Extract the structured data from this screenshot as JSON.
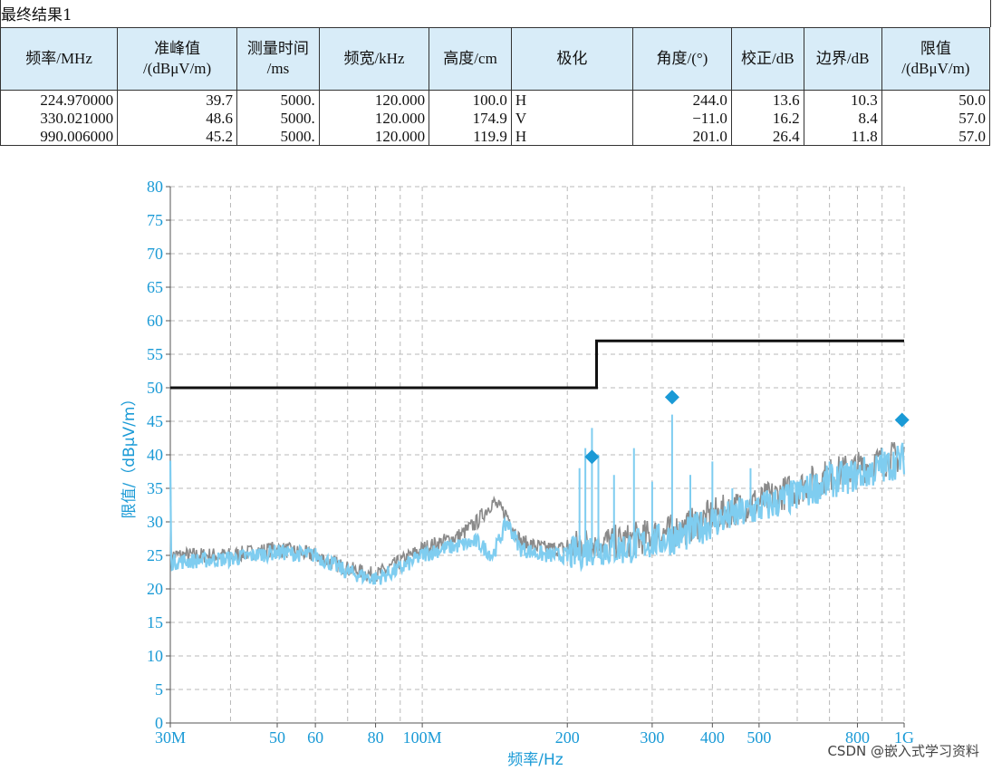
{
  "table": {
    "title": "最终结果1",
    "headers": [
      "频率/MHz",
      "准峰值\n/(dBμV/m)",
      "测量时间\n/ms",
      "频宽/kHz",
      "高度/cm",
      "极化",
      "角度/(°)",
      "校正/dB",
      "边界/dB",
      "限值\n/(dBμV/m)"
    ],
    "rows": [
      [
        "224.970000",
        "39.7",
        "5000.",
        "120.000",
        "100.0",
        "H",
        "244.0",
        "13.6",
        "10.3",
        "50.0"
      ],
      [
        "330.021000",
        "48.6",
        "5000.",
        "120.000",
        "174.9",
        "V",
        "−11.0",
        "16.2",
        "8.4",
        "57.0"
      ],
      [
        "990.006000",
        "45.2",
        "5000.",
        "120.000",
        "119.9",
        "H",
        "201.0",
        "26.4",
        "11.8",
        "57.0"
      ]
    ]
  },
  "chart_data": {
    "type": "line",
    "xlabel": "频率/Hz",
    "ylabel": "限值/（dBμV/m）",
    "xscale": "log",
    "xlim": [
      30,
      1000
    ],
    "ylim": [
      0,
      80
    ],
    "grid": true,
    "x_ticks": [
      {
        "value": 30,
        "label": "30M"
      },
      {
        "value": 50,
        "label": "50"
      },
      {
        "value": 60,
        "label": "60"
      },
      {
        "value": 80,
        "label": "80"
      },
      {
        "value": 100,
        "label": "100M"
      },
      {
        "value": 200,
        "label": "200"
      },
      {
        "value": 300,
        "label": "300"
      },
      {
        "value": 400,
        "label": "400"
      },
      {
        "value": 500,
        "label": "500"
      },
      {
        "value": 800,
        "label": "800"
      },
      {
        "value": 1000,
        "label": "1G"
      }
    ],
    "y_ticks": [
      0,
      5,
      10,
      15,
      20,
      25,
      30,
      35,
      40,
      45,
      50,
      55,
      60,
      65,
      70,
      75,
      80
    ],
    "limit_line": {
      "color": "#111111",
      "points": [
        [
          30,
          50
        ],
        [
          230,
          50
        ],
        [
          230,
          57
        ],
        [
          1000,
          57
        ]
      ]
    },
    "series": [
      {
        "color": "#8a8a8a",
        "points": [
          [
            30,
            25
          ],
          [
            40,
            25
          ],
          [
            50,
            26
          ],
          [
            60,
            25
          ],
          [
            70,
            23
          ],
          [
            80,
            22
          ],
          [
            90,
            24
          ],
          [
            100,
            26
          ],
          [
            110,
            27
          ],
          [
            120,
            28
          ],
          [
            130,
            30
          ],
          [
            140,
            33
          ],
          [
            150,
            31
          ],
          [
            160,
            27
          ],
          [
            180,
            26
          ],
          [
            200,
            26
          ],
          [
            225,
            27
          ],
          [
            260,
            27
          ],
          [
            300,
            28
          ],
          [
            350,
            29
          ],
          [
            400,
            31
          ],
          [
            500,
            33
          ],
          [
            600,
            35
          ],
          [
            700,
            37
          ],
          [
            800,
            38
          ],
          [
            900,
            39
          ],
          [
            1000,
            40
          ]
        ]
      },
      {
        "color": "#7fcdf0",
        "points": [
          [
            30,
            24
          ],
          [
            40,
            24.5
          ],
          [
            50,
            25.5
          ],
          [
            60,
            25
          ],
          [
            70,
            22.5
          ],
          [
            80,
            21.5
          ],
          [
            90,
            23
          ],
          [
            100,
            25
          ],
          [
            110,
            26
          ],
          [
            120,
            26.5
          ],
          [
            130,
            27
          ],
          [
            140,
            25
          ],
          [
            150,
            30
          ],
          [
            160,
            26
          ],
          [
            180,
            25
          ],
          [
            200,
            25
          ],
          [
            225,
            26
          ],
          [
            260,
            26
          ],
          [
            300,
            27
          ],
          [
            350,
            28
          ],
          [
            400,
            30
          ],
          [
            500,
            32
          ],
          [
            600,
            34
          ],
          [
            700,
            36
          ],
          [
            800,
            37
          ],
          [
            900,
            38
          ],
          [
            1000,
            39.5
          ]
        ]
      }
    ],
    "spikes": [
      {
        "x": 212,
        "y": 38
      },
      {
        "x": 218,
        "y": 41
      },
      {
        "x": 225,
        "y": 44
      },
      {
        "x": 232,
        "y": 40
      },
      {
        "x": 250,
        "y": 37
      },
      {
        "x": 275,
        "y": 41
      },
      {
        "x": 300,
        "y": 36
      },
      {
        "x": 330,
        "y": 46
      },
      {
        "x": 360,
        "y": 37
      },
      {
        "x": 400,
        "y": 39
      },
      {
        "x": 440,
        "y": 35
      },
      {
        "x": 480,
        "y": 38
      },
      {
        "x": 600,
        "y": 36
      },
      {
        "x": 700,
        "y": 39
      },
      {
        "x": 900,
        "y": 41
      }
    ],
    "markers": {
      "color": "#1a9ad6",
      "points": [
        [
          224.97,
          39.7
        ],
        [
          330.021,
          48.6
        ],
        [
          990.006,
          45.2
        ]
      ]
    }
  },
  "watermark": "CSDN @嵌入式学习资料"
}
